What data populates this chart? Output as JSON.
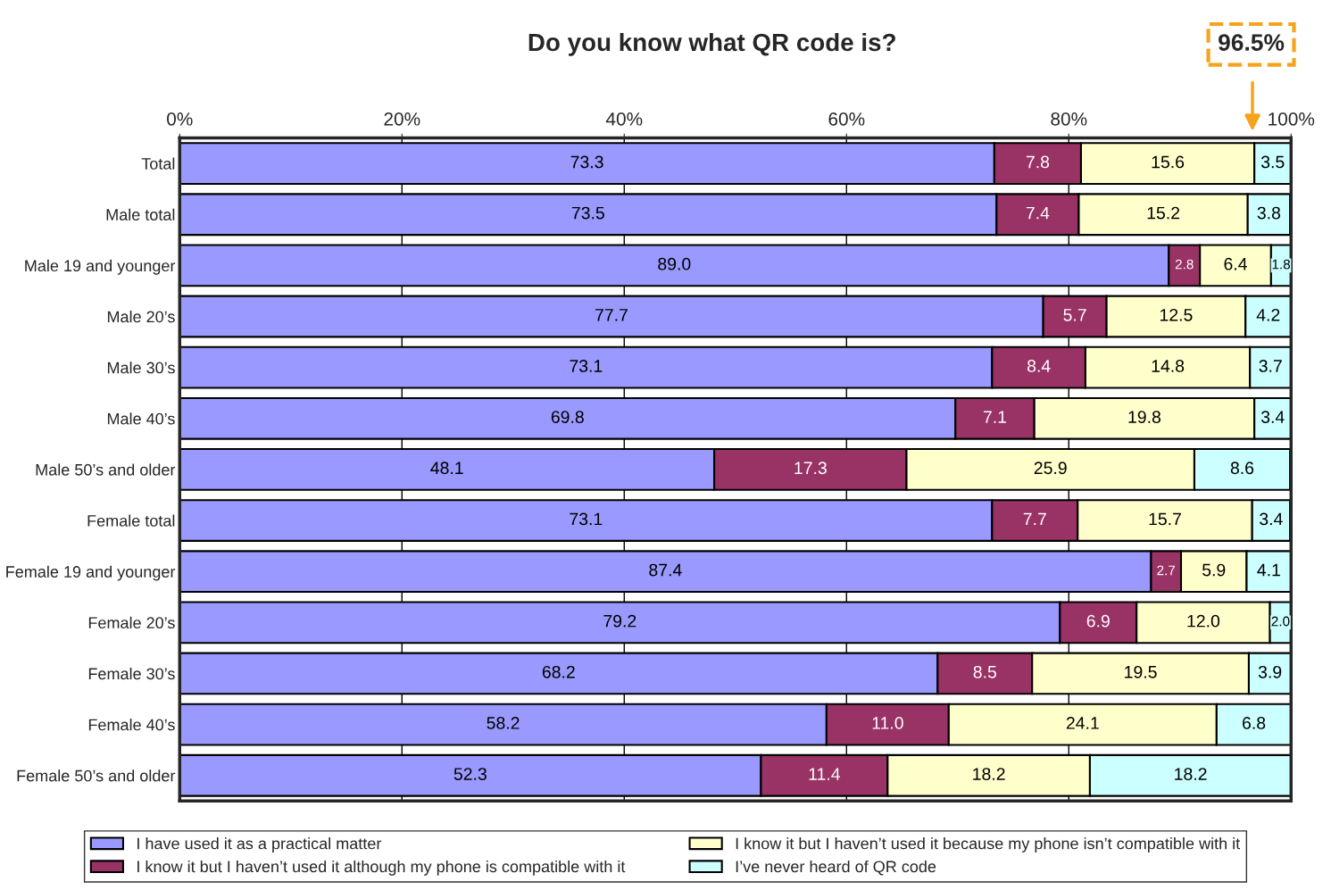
{
  "chart_data": {
    "type": "bar",
    "orientation": "horizontal",
    "stacked": true,
    "title": "Do you know what QR code is?",
    "categories": [
      "Total",
      "Male total",
      "Male 19 and younger",
      "Male 20’s",
      "Male 30’s",
      "Male 40’s",
      "Male 50’s and older",
      "Female total",
      "Female 19 and younger",
      "Female 20’s",
      "Female 30’s",
      "Female 40’s",
      "Female 50’s and older"
    ],
    "series": [
      {
        "name": "I have used it as a practical matter",
        "color": "#9999ff",
        "values": [
          73.3,
          73.5,
          89.0,
          77.7,
          73.1,
          69.8,
          48.1,
          73.1,
          87.4,
          79.2,
          68.2,
          58.2,
          52.3
        ],
        "value_labels": [
          "73.3",
          "73.5",
          "89.0",
          "77.7",
          "73.1",
          "69.8",
          "48.1",
          "73.1",
          "87.4",
          "79.2",
          "68.2",
          "58.2",
          "52.3"
        ]
      },
      {
        "name": "I know it but I haven’t used it although my phone is compatible with it",
        "color": "#993366",
        "values": [
          7.8,
          7.4,
          2.8,
          5.7,
          8.4,
          7.1,
          17.3,
          7.7,
          2.7,
          6.9,
          8.5,
          11.0,
          11.4
        ],
        "value_labels": [
          "7.8",
          "7.4",
          "2.8",
          "5.7",
          "8.4",
          "7.1",
          "17.3",
          "7.7",
          "2.7",
          "6.9",
          "8.5",
          "11.0",
          "11.4"
        ]
      },
      {
        "name": "I know it but I haven’t used it because my phone isn’t compatible with it",
        "color": "#ffffcc",
        "values": [
          15.6,
          15.2,
          6.4,
          12.5,
          14.8,
          19.8,
          25.9,
          15.7,
          5.9,
          12.0,
          19.5,
          24.1,
          18.2
        ],
        "value_labels": [
          "15.6",
          "15.2",
          "6.4",
          "12.5",
          "14.8",
          "19.8",
          "25.9",
          "15.7",
          "5.9",
          "12.0",
          "19.5",
          "24.1",
          "18.2"
        ]
      },
      {
        "name": "I’ve never heard of QR code",
        "color": "#ccffff",
        "values": [
          3.5,
          3.8,
          1.8,
          4.2,
          3.7,
          3.4,
          8.6,
          3.4,
          4.1,
          2.0,
          3.9,
          6.8,
          18.2
        ],
        "value_labels": [
          "3.5",
          "3.8",
          "1.8",
          "4.2",
          "3.7",
          "3.4",
          "8.6",
          "3.4",
          "4.1",
          "2.0",
          "3.9",
          "6.8",
          "18.2"
        ]
      }
    ],
    "xlim": [
      0,
      100
    ],
    "xticks": [
      {
        "value": 0,
        "label": "0%"
      },
      {
        "value": 20,
        "label": "20%"
      },
      {
        "value": 40,
        "label": "40%"
      },
      {
        "value": 60,
        "label": "60%"
      },
      {
        "value": 80,
        "label": "80%"
      },
      {
        "value": 100,
        "label": "100%"
      }
    ],
    "grid": "x",
    "legend": "bottom",
    "annotations": [
      "96.5%"
    ]
  }
}
